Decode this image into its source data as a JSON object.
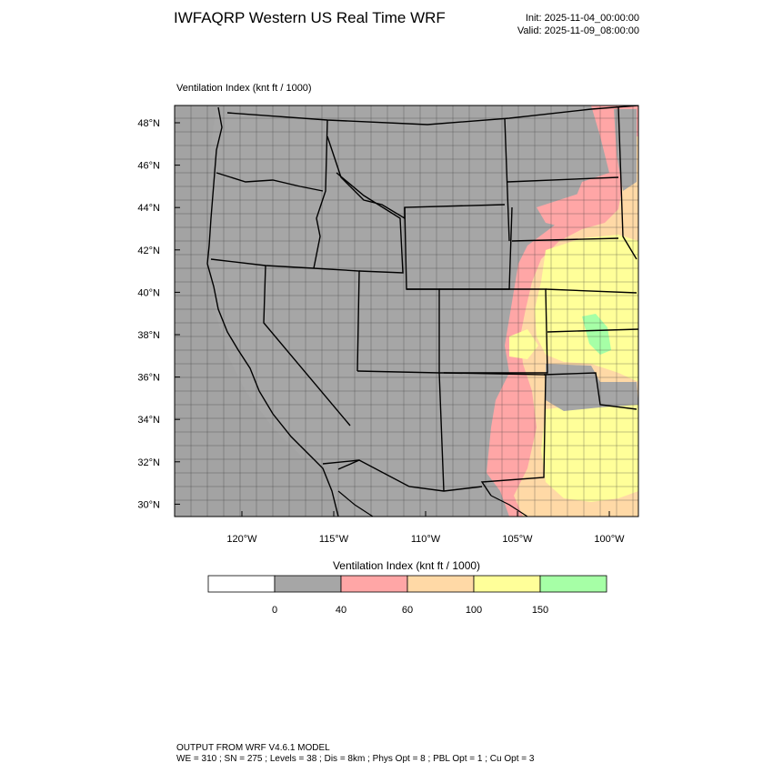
{
  "header": {
    "title": "IWFAQRP Western US Real Time WRF",
    "init": "Init: 2025-11-04_00:00:00",
    "valid": "Valid: 2025-11-09_08:00:00"
  },
  "field": {
    "label": "Ventilation Index   (knt ft / 1000)"
  },
  "axes": {
    "lat_labels": [
      "48°N",
      "46°N",
      "44°N",
      "42°N",
      "40°N",
      "38°N",
      "36°N",
      "34°N",
      "32°N",
      "30°N"
    ],
    "lon_labels": [
      "120°W",
      "115°W",
      "110°W",
      "105°W",
      "100°W"
    ]
  },
  "colorbar": {
    "title": "Ventilation Index  (knt ft / 1000)",
    "colors": [
      "#ffffff",
      "#a6a6a6",
      "#ffa6a6",
      "#ffd9a6",
      "#ffff99",
      "#a6ffa6"
    ],
    "ticks": [
      "0",
      "40",
      "60",
      "100",
      "150"
    ]
  },
  "legend_colors": {
    "land": "#a6a6a6",
    "low": "#ffa6a6",
    "moderate": "#ffd9a6",
    "high": "#ffff99",
    "very_high": "#a6ffa6"
  },
  "footer": {
    "line1": "OUTPUT FROM WRF V4.6.1 MODEL",
    "line2": "WE = 310 ; SN = 275 ; Levels = 38 ; Dis = 8km ; Phys Opt = 8 ; PBL Opt = 1 ; Cu Opt = 3"
  }
}
